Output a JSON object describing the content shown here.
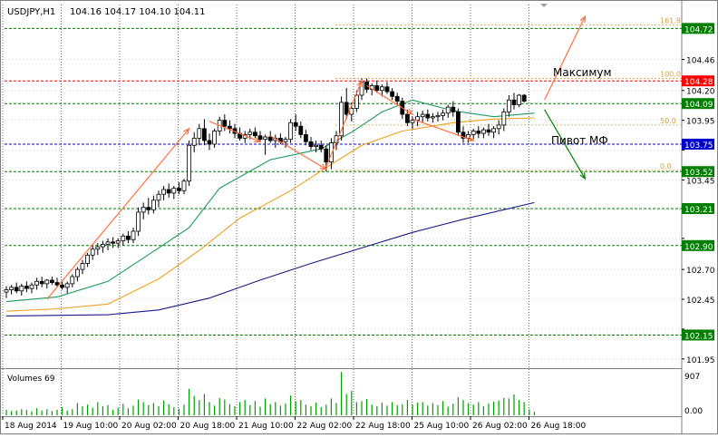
{
  "header": {
    "symbol": "USDJPY,H1",
    "ohlc": "104.16 104.17 104.10 104.11"
  },
  "annotations": {
    "maximum": "Максимум",
    "pivot": "Пивот МФ"
  },
  "fib_labels": [
    "161.8",
    "100.0",
    "50.0",
    "0.0"
  ],
  "colors": {
    "candle": "#000000",
    "grid": "#000000",
    "level_green": "#007f00",
    "level_red": "#ff0000",
    "level_blue": "#0000cc",
    "ma_green": "#1a9a5a",
    "ma_orange": "#f0a020",
    "ma_navy": "#1a1a8a",
    "arrow_orange": "#ff7040",
    "arrow_green": "#008000",
    "fib": "#d4a040"
  },
  "chart_data": [
    {
      "type": "candlestick",
      "title": "USDJPY,H1",
      "y_ticks": [
        104.72,
        104.46,
        104.2,
        103.95,
        103.7,
        103.45,
        103.2,
        102.96,
        102.7,
        102.45,
        102.2,
        101.95
      ],
      "ylim": [
        101.88,
        104.92
      ],
      "x_ticks": [
        "18 Aug 2014",
        "19 Aug 10:00",
        "20 Aug 02:00",
        "20 Aug 18:00",
        "21 Aug 10:00",
        "22 Aug 02:00",
        "22 Aug 18:00",
        "25 Aug 10:00",
        "26 Aug 02:00",
        "26 Aug 18:00"
      ],
      "price_levels": [
        {
          "value": 104.72,
          "label": "104.72",
          "color": "#007f00"
        },
        {
          "value": 104.28,
          "label": "104.28",
          "color": "#ff0000"
        },
        {
          "value": 104.09,
          "label": "104.09",
          "color": "#007f00"
        },
        {
          "value": 103.75,
          "label": "103.75",
          "color": "#0000cc"
        },
        {
          "value": 103.52,
          "label": "103.52",
          "color": "#007f00"
        },
        {
          "value": 103.21,
          "label": "103.21",
          "color": "#007f00"
        },
        {
          "value": 102.9,
          "label": "102.90",
          "color": "#007f00"
        },
        {
          "value": 102.15,
          "label": "102.15",
          "color": "#007f00"
        }
      ],
      "fib_levels": [
        {
          "label": "161.8",
          "value": 104.75
        },
        {
          "label": "100.0",
          "value": 104.3
        },
        {
          "label": "50.0",
          "value": 103.91
        },
        {
          "label": "0.0",
          "value": 103.53
        }
      ],
      "candles": [
        {
          "o": 102.51,
          "h": 102.56,
          "l": 102.46,
          "c": 102.53
        },
        {
          "o": 102.53,
          "h": 102.57,
          "l": 102.49,
          "c": 102.55
        },
        {
          "o": 102.55,
          "h": 102.59,
          "l": 102.5,
          "c": 102.52
        },
        {
          "o": 102.52,
          "h": 102.58,
          "l": 102.48,
          "c": 102.56
        },
        {
          "o": 102.56,
          "h": 102.6,
          "l": 102.51,
          "c": 102.54
        },
        {
          "o": 102.54,
          "h": 102.59,
          "l": 102.5,
          "c": 102.57
        },
        {
          "o": 102.57,
          "h": 102.63,
          "l": 102.53,
          "c": 102.6
        },
        {
          "o": 102.6,
          "h": 102.64,
          "l": 102.55,
          "c": 102.58
        },
        {
          "o": 102.58,
          "h": 102.62,
          "l": 102.54,
          "c": 102.61
        },
        {
          "o": 102.61,
          "h": 102.64,
          "l": 102.57,
          "c": 102.59
        },
        {
          "o": 102.59,
          "h": 102.63,
          "l": 102.55,
          "c": 102.57
        },
        {
          "o": 102.57,
          "h": 102.6,
          "l": 102.53,
          "c": 102.55
        },
        {
          "o": 102.55,
          "h": 102.6,
          "l": 102.5,
          "c": 102.58
        },
        {
          "o": 102.58,
          "h": 102.66,
          "l": 102.55,
          "c": 102.64
        },
        {
          "o": 102.64,
          "h": 102.72,
          "l": 102.6,
          "c": 102.7
        },
        {
          "o": 102.7,
          "h": 102.78,
          "l": 102.66,
          "c": 102.75
        },
        {
          "o": 102.75,
          "h": 102.84,
          "l": 102.72,
          "c": 102.82
        },
        {
          "o": 102.82,
          "h": 102.9,
          "l": 102.78,
          "c": 102.87
        },
        {
          "o": 102.87,
          "h": 102.92,
          "l": 102.82,
          "c": 102.89
        },
        {
          "o": 102.89,
          "h": 102.94,
          "l": 102.84,
          "c": 102.91
        },
        {
          "o": 102.91,
          "h": 102.96,
          "l": 102.86,
          "c": 102.93
        },
        {
          "o": 102.93,
          "h": 102.97,
          "l": 102.88,
          "c": 102.92
        },
        {
          "o": 102.92,
          "h": 102.96,
          "l": 102.88,
          "c": 102.94
        },
        {
          "o": 102.94,
          "h": 103.0,
          "l": 102.9,
          "c": 102.98
        },
        {
          "o": 102.98,
          "h": 103.02,
          "l": 102.92,
          "c": 102.95
        },
        {
          "o": 102.95,
          "h": 103.05,
          "l": 102.92,
          "c": 103.02
        },
        {
          "o": 103.02,
          "h": 103.22,
          "l": 102.98,
          "c": 103.18
        },
        {
          "o": 103.18,
          "h": 103.26,
          "l": 103.12,
          "c": 103.22
        },
        {
          "o": 103.22,
          "h": 103.3,
          "l": 103.16,
          "c": 103.2
        },
        {
          "o": 103.2,
          "h": 103.32,
          "l": 103.17,
          "c": 103.28
        },
        {
          "o": 103.28,
          "h": 103.36,
          "l": 103.22,
          "c": 103.33
        },
        {
          "o": 103.33,
          "h": 103.4,
          "l": 103.28,
          "c": 103.37
        },
        {
          "o": 103.37,
          "h": 103.42,
          "l": 103.3,
          "c": 103.34
        },
        {
          "o": 103.34,
          "h": 103.4,
          "l": 103.29,
          "c": 103.38
        },
        {
          "o": 103.38,
          "h": 103.43,
          "l": 103.33,
          "c": 103.36
        },
        {
          "o": 103.36,
          "h": 103.46,
          "l": 103.33,
          "c": 103.44
        },
        {
          "o": 103.44,
          "h": 103.78,
          "l": 103.4,
          "c": 103.74
        },
        {
          "o": 103.74,
          "h": 103.85,
          "l": 103.68,
          "c": 103.8
        },
        {
          "o": 103.8,
          "h": 103.92,
          "l": 103.74,
          "c": 103.88
        },
        {
          "o": 103.88,
          "h": 103.96,
          "l": 103.74,
          "c": 103.78
        },
        {
          "o": 103.78,
          "h": 103.84,
          "l": 103.7,
          "c": 103.75
        },
        {
          "o": 103.75,
          "h": 103.88,
          "l": 103.72,
          "c": 103.86
        },
        {
          "o": 103.86,
          "h": 103.98,
          "l": 103.82,
          "c": 103.95
        },
        {
          "o": 103.95,
          "h": 104.0,
          "l": 103.86,
          "c": 103.9
        },
        {
          "o": 103.9,
          "h": 103.95,
          "l": 103.84,
          "c": 103.88
        },
        {
          "o": 103.88,
          "h": 103.92,
          "l": 103.8,
          "c": 103.84
        },
        {
          "o": 103.84,
          "h": 103.89,
          "l": 103.78,
          "c": 103.8
        },
        {
          "o": 103.8,
          "h": 103.86,
          "l": 103.76,
          "c": 103.83
        },
        {
          "o": 103.83,
          "h": 103.88,
          "l": 103.79,
          "c": 103.85
        },
        {
          "o": 103.85,
          "h": 103.89,
          "l": 103.8,
          "c": 103.82
        },
        {
          "o": 103.82,
          "h": 103.86,
          "l": 103.77,
          "c": 103.79
        },
        {
          "o": 103.79,
          "h": 103.83,
          "l": 103.66,
          "c": 103.81
        },
        {
          "o": 103.81,
          "h": 103.86,
          "l": 103.76,
          "c": 103.78
        },
        {
          "o": 103.78,
          "h": 103.83,
          "l": 103.72,
          "c": 103.8
        },
        {
          "o": 103.8,
          "h": 103.84,
          "l": 103.75,
          "c": 103.77
        },
        {
          "o": 103.77,
          "h": 103.81,
          "l": 103.72,
          "c": 103.79
        },
        {
          "o": 103.79,
          "h": 103.96,
          "l": 103.76,
          "c": 103.93
        },
        {
          "o": 103.93,
          "h": 104.0,
          "l": 103.86,
          "c": 103.9
        },
        {
          "o": 103.9,
          "h": 103.94,
          "l": 103.8,
          "c": 103.83
        },
        {
          "o": 103.83,
          "h": 103.87,
          "l": 103.74,
          "c": 103.77
        },
        {
          "o": 103.77,
          "h": 103.81,
          "l": 103.7,
          "c": 103.73
        },
        {
          "o": 103.73,
          "h": 103.78,
          "l": 103.68,
          "c": 103.74
        },
        {
          "o": 103.74,
          "h": 103.78,
          "l": 103.68,
          "c": 103.71
        },
        {
          "o": 103.71,
          "h": 103.74,
          "l": 103.52,
          "c": 103.6
        },
        {
          "o": 103.6,
          "h": 103.8,
          "l": 103.54,
          "c": 103.76
        },
        {
          "o": 103.76,
          "h": 103.86,
          "l": 103.7,
          "c": 103.82
        },
        {
          "o": 103.82,
          "h": 104.15,
          "l": 103.78,
          "c": 104.1
        },
        {
          "o": 104.1,
          "h": 104.22,
          "l": 103.96,
          "c": 104.0
        },
        {
          "o": 104.0,
          "h": 104.1,
          "l": 103.94,
          "c": 104.05
        },
        {
          "o": 104.05,
          "h": 104.2,
          "l": 104.02,
          "c": 104.16
        },
        {
          "o": 104.16,
          "h": 104.3,
          "l": 104.12,
          "c": 104.27
        },
        {
          "o": 104.27,
          "h": 104.3,
          "l": 104.18,
          "c": 104.21
        },
        {
          "o": 104.21,
          "h": 104.26,
          "l": 104.16,
          "c": 104.24
        },
        {
          "o": 104.24,
          "h": 104.28,
          "l": 104.18,
          "c": 104.2
        },
        {
          "o": 104.2,
          "h": 104.25,
          "l": 104.15,
          "c": 104.23
        },
        {
          "o": 104.23,
          "h": 104.27,
          "l": 104.17,
          "c": 104.19
        },
        {
          "o": 104.19,
          "h": 104.22,
          "l": 104.12,
          "c": 104.15
        },
        {
          "o": 104.15,
          "h": 104.18,
          "l": 104.08,
          "c": 104.11
        },
        {
          "o": 104.11,
          "h": 104.14,
          "l": 103.96,
          "c": 104.0
        },
        {
          "o": 104.0,
          "h": 104.04,
          "l": 103.9,
          "c": 103.93
        },
        {
          "o": 103.93,
          "h": 103.98,
          "l": 103.88,
          "c": 103.95
        },
        {
          "o": 103.95,
          "h": 104.02,
          "l": 103.9,
          "c": 103.98
        },
        {
          "o": 103.98,
          "h": 104.03,
          "l": 103.93,
          "c": 104.0
        },
        {
          "o": 104.0,
          "h": 104.04,
          "l": 103.94,
          "c": 103.97
        },
        {
          "o": 103.97,
          "h": 104.01,
          "l": 103.93,
          "c": 103.98
        },
        {
          "o": 103.98,
          "h": 104.02,
          "l": 103.94,
          "c": 103.99
        },
        {
          "o": 103.99,
          "h": 104.04,
          "l": 103.95,
          "c": 104.01
        },
        {
          "o": 104.01,
          "h": 104.08,
          "l": 103.97,
          "c": 104.06
        },
        {
          "o": 104.06,
          "h": 104.11,
          "l": 103.98,
          "c": 104.02
        },
        {
          "o": 104.02,
          "h": 104.05,
          "l": 103.82,
          "c": 103.85
        },
        {
          "o": 103.85,
          "h": 103.9,
          "l": 103.76,
          "c": 103.8
        },
        {
          "o": 103.8,
          "h": 103.86,
          "l": 103.76,
          "c": 103.83
        },
        {
          "o": 103.83,
          "h": 103.88,
          "l": 103.79,
          "c": 103.86
        },
        {
          "o": 103.86,
          "h": 103.9,
          "l": 103.8,
          "c": 103.84
        },
        {
          "o": 103.84,
          "h": 103.89,
          "l": 103.8,
          "c": 103.87
        },
        {
          "o": 103.87,
          "h": 103.92,
          "l": 103.82,
          "c": 103.85
        },
        {
          "o": 103.85,
          "h": 103.9,
          "l": 103.8,
          "c": 103.88
        },
        {
          "o": 103.88,
          "h": 103.95,
          "l": 103.83,
          "c": 103.91
        },
        {
          "o": 103.91,
          "h": 104.05,
          "l": 103.86,
          "c": 104.02
        },
        {
          "o": 104.02,
          "h": 104.16,
          "l": 103.98,
          "c": 104.12
        },
        {
          "o": 104.12,
          "h": 104.18,
          "l": 104.04,
          "c": 104.08
        },
        {
          "o": 104.08,
          "h": 104.17,
          "l": 104.06,
          "c": 104.16
        },
        {
          "o": 104.16,
          "h": 104.17,
          "l": 104.1,
          "c": 104.11
        }
      ],
      "series": [
        {
          "type": "line",
          "color": "#1a9a5a",
          "points": [
            [
              0,
              102.43
            ],
            [
              10,
              102.47
            ],
            [
              20,
              102.6
            ],
            [
              30,
              102.88
            ],
            [
              36,
              103.05
            ],
            [
              42,
              103.38
            ],
            [
              52,
              103.62
            ],
            [
              62,
              103.71
            ],
            [
              68,
              103.85
            ],
            [
              74,
              104.02
            ],
            [
              80,
              104.12
            ],
            [
              88,
              104.03
            ],
            [
              96,
              103.98
            ],
            [
              104,
              104.01
            ]
          ]
        },
        {
          "type": "line",
          "color": "#f0a020",
          "points": [
            [
              0,
              102.35
            ],
            [
              10,
              102.37
            ],
            [
              20,
              102.41
            ],
            [
              30,
              102.62
            ],
            [
              38,
              102.86
            ],
            [
              46,
              103.13
            ],
            [
              56,
              103.36
            ],
            [
              64,
              103.58
            ],
            [
              70,
              103.74
            ],
            [
              78,
              103.86
            ],
            [
              88,
              103.93
            ],
            [
              96,
              103.96
            ],
            [
              104,
              103.97
            ]
          ]
        },
        {
          "type": "line",
          "color": "#1a1a8a",
          "points": [
            [
              0,
              102.31
            ],
            [
              20,
              102.32
            ],
            [
              30,
              102.36
            ],
            [
              40,
              102.46
            ],
            [
              50,
              102.61
            ],
            [
              60,
              102.75
            ],
            [
              70,
              102.88
            ],
            [
              80,
              103.01
            ],
            [
              90,
              103.12
            ],
            [
              104,
              103.26
            ]
          ]
        }
      ],
      "arrows": [
        {
          "color": "#ff7040",
          "from": [
            8,
            102.45
          ],
          "to": [
            36,
            103.88
          ]
        },
        {
          "color": "#ff7040",
          "from": [
            40,
            103.94
          ],
          "to": [
            50,
            103.77
          ]
        },
        {
          "color": "#ff7040",
          "from": [
            52,
            103.82
          ],
          "to": [
            63,
            103.54
          ]
        },
        {
          "color": "#ff7040",
          "from": [
            63,
            103.56
          ],
          "to": [
            70,
            104.28
          ]
        },
        {
          "color": "#ff7040",
          "from": [
            71,
            104.24
          ],
          "to": [
            80,
            104.0
          ]
        },
        {
          "color": "#ff7040",
          "from": [
            80,
            103.96
          ],
          "to": [
            92,
            103.78
          ]
        },
        {
          "color": "#ff7040",
          "from": [
            106,
            104.12
          ],
          "to": [
            114,
            104.82
          ]
        },
        {
          "color": "#008000",
          "from": [
            106,
            104.04
          ],
          "to": [
            114,
            103.46
          ]
        }
      ]
    },
    {
      "type": "bar",
      "title": "Volumes 69",
      "y_ticks": [
        907,
        0
      ],
      "ylim": [
        0,
        907
      ],
      "values": [
        110,
        85,
        95,
        120,
        105,
        80,
        140,
        95,
        120,
        85,
        110,
        160,
        95,
        120,
        240,
        180,
        210,
        150,
        260,
        180,
        200,
        110,
        150,
        230,
        140,
        190,
        310,
        260,
        200,
        240,
        180,
        290,
        220,
        160,
        130,
        210,
        520,
        380,
        300,
        420,
        260,
        190,
        340,
        310,
        220,
        180,
        260,
        300,
        200,
        280,
        170,
        330,
        220,
        260,
        190,
        230,
        390,
        280,
        300,
        210,
        180,
        250,
        160,
        210,
        330,
        240,
        850,
        420,
        480,
        260,
        280,
        320,
        210,
        180,
        250,
        190,
        260,
        200,
        220,
        300,
        210,
        250,
        260,
        190,
        240,
        200,
        280,
        170,
        230,
        360,
        300,
        240,
        210,
        260,
        180,
        230,
        270,
        290,
        340,
        330,
        410,
        300,
        260,
        120,
        69
      ]
    }
  ]
}
